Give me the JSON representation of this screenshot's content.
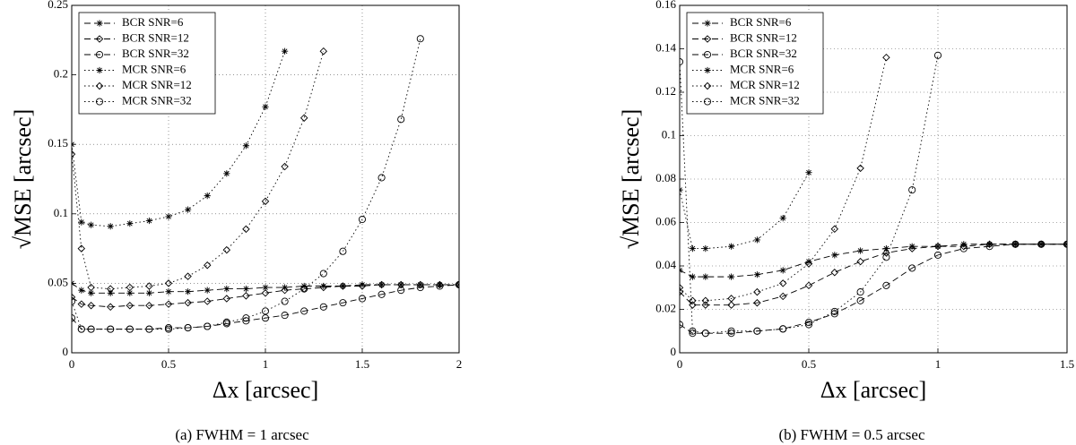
{
  "chart_data": [
    {
      "type": "line",
      "caption": "(a) FWHM = 1 arcsec",
      "xlabel": "Δx [arcsec]",
      "ylabel": "√MSE [arcsec]",
      "x": [
        0,
        0.05,
        0.1,
        0.2,
        0.3,
        0.4,
        0.5,
        0.6,
        0.7,
        0.8,
        0.9,
        1.0,
        1.1,
        1.2,
        1.3,
        1.4,
        1.5,
        1.6,
        1.7,
        1.8,
        1.9,
        2.0
      ],
      "xlim": [
        0,
        2
      ],
      "xticks": [
        0,
        0.5,
        1,
        1.5,
        2
      ],
      "ylim": [
        0,
        0.25
      ],
      "yticks": [
        0,
        0.05,
        0.1,
        0.15,
        0.2,
        0.25
      ],
      "grid": true,
      "legend": "upper left",
      "series": [
        {
          "name": "BCR SNR=6",
          "color": "#000000",
          "linestyle": "dashed",
          "marker": "star",
          "values": [
            0.05,
            0.045,
            0.043,
            0.043,
            0.043,
            0.043,
            0.044,
            0.044,
            0.045,
            0.046,
            0.046,
            0.047,
            0.047,
            0.048,
            0.048,
            0.048,
            0.049,
            0.049,
            0.049,
            0.049,
            0.049,
            0.049
          ]
        },
        {
          "name": "BCR SNR=12",
          "color": "#000000",
          "linestyle": "dashed",
          "marker": "diamond",
          "values": [
            0.04,
            0.035,
            0.034,
            0.033,
            0.034,
            0.034,
            0.035,
            0.036,
            0.037,
            0.039,
            0.041,
            0.043,
            0.045,
            0.046,
            0.047,
            0.048,
            0.048,
            0.049,
            0.049,
            0.049,
            0.049,
            0.049
          ]
        },
        {
          "name": "BCR SNR=32",
          "color": "#000000",
          "linestyle": "dashed",
          "marker": "circle",
          "values": [
            0.025,
            0.017,
            0.017,
            0.017,
            0.017,
            0.017,
            0.018,
            0.018,
            0.019,
            0.021,
            0.023,
            0.025,
            0.027,
            0.03,
            0.033,
            0.036,
            0.039,
            0.042,
            0.045,
            0.047,
            0.048,
            0.049
          ]
        },
        {
          "name": "MCR SNR=6",
          "color": "#000000",
          "linestyle": "dotted",
          "marker": "star",
          "values": [
            0.15,
            0.094,
            0.092,
            0.091,
            0.093,
            0.095,
            0.098,
            0.103,
            0.113,
            0.129,
            0.149,
            0.177,
            0.217,
            null,
            null,
            null,
            null,
            null,
            null,
            null,
            null,
            null
          ]
        },
        {
          "name": "MCR SNR=12",
          "color": "#000000",
          "linestyle": "dotted",
          "marker": "diamond",
          "values": [
            0.143,
            0.075,
            0.047,
            0.046,
            0.047,
            0.048,
            0.05,
            0.055,
            0.063,
            0.074,
            0.089,
            0.109,
            0.134,
            0.169,
            0.217,
            null,
            null,
            null,
            null,
            null,
            null,
            null
          ]
        },
        {
          "name": "MCR SNR=32",
          "color": "#000000",
          "linestyle": "dotted",
          "marker": "circle",
          "values": [
            0.037,
            0.017,
            0.017,
            0.017,
            0.017,
            0.017,
            0.017,
            0.018,
            0.019,
            0.022,
            0.025,
            0.03,
            0.037,
            0.046,
            0.057,
            0.073,
            0.096,
            0.126,
            0.168,
            0.226,
            null,
            null
          ]
        }
      ]
    },
    {
      "type": "line",
      "caption": "(b) FWHM = 0.5 arcsec",
      "xlabel": "Δx [arcsec]",
      "ylabel": "√MSE [arcsec]",
      "x": [
        0,
        0.05,
        0.1,
        0.2,
        0.3,
        0.4,
        0.5,
        0.6,
        0.7,
        0.8,
        0.9,
        1.0,
        1.1,
        1.2,
        1.3,
        1.4,
        1.5
      ],
      "xlim": [
        0,
        1.5
      ],
      "xticks": [
        0,
        0.5,
        1,
        1.5
      ],
      "ylim": [
        0,
        0.16
      ],
      "yticks": [
        0,
        0.02,
        0.04,
        0.06,
        0.08,
        0.1,
        0.12,
        0.14,
        0.16
      ],
      "grid": true,
      "legend": "upper left",
      "series": [
        {
          "name": "BCR SNR=6",
          "color": "#000000",
          "linestyle": "dashed",
          "marker": "star",
          "values": [
            0.038,
            0.035,
            0.035,
            0.035,
            0.036,
            0.038,
            0.042,
            0.045,
            0.047,
            0.048,
            0.049,
            0.049,
            0.05,
            0.05,
            0.05,
            0.05,
            0.05
          ]
        },
        {
          "name": "BCR SNR=12",
          "color": "#000000",
          "linestyle": "dashed",
          "marker": "diamond",
          "values": [
            0.028,
            0.022,
            0.022,
            0.022,
            0.023,
            0.026,
            0.031,
            0.037,
            0.042,
            0.046,
            0.048,
            0.049,
            0.049,
            0.05,
            0.05,
            0.05,
            0.05
          ]
        },
        {
          "name": "BCR SNR=32",
          "color": "#000000",
          "linestyle": "dashed",
          "marker": "circle",
          "values": [
            0.013,
            0.009,
            0.009,
            0.009,
            0.01,
            0.011,
            0.014,
            0.018,
            0.024,
            0.031,
            0.039,
            0.045,
            0.048,
            0.049,
            0.05,
            0.05,
            0.05
          ]
        },
        {
          "name": "MCR SNR=6",
          "color": "#000000",
          "linestyle": "dotted",
          "marker": "star",
          "values": [
            0.075,
            0.048,
            0.048,
            0.049,
            0.052,
            0.062,
            0.083,
            null,
            null,
            null,
            null,
            null,
            null,
            null,
            null,
            null,
            null
          ]
        },
        {
          "name": "MCR SNR=12",
          "color": "#000000",
          "linestyle": "dotted",
          "marker": "diamond",
          "values": [
            0.03,
            0.024,
            0.024,
            0.025,
            0.028,
            0.032,
            0.041,
            0.057,
            0.085,
            0.136,
            null,
            null,
            null,
            null,
            null,
            null,
            null
          ]
        },
        {
          "name": "MCR SNR=32",
          "color": "#000000",
          "linestyle": "dotted",
          "marker": "circle",
          "values": [
            0.134,
            0.01,
            0.009,
            0.01,
            0.01,
            0.011,
            0.013,
            0.019,
            0.028,
            0.044,
            0.075,
            0.137,
            null,
            null,
            null,
            null,
            null
          ]
        }
      ]
    }
  ]
}
